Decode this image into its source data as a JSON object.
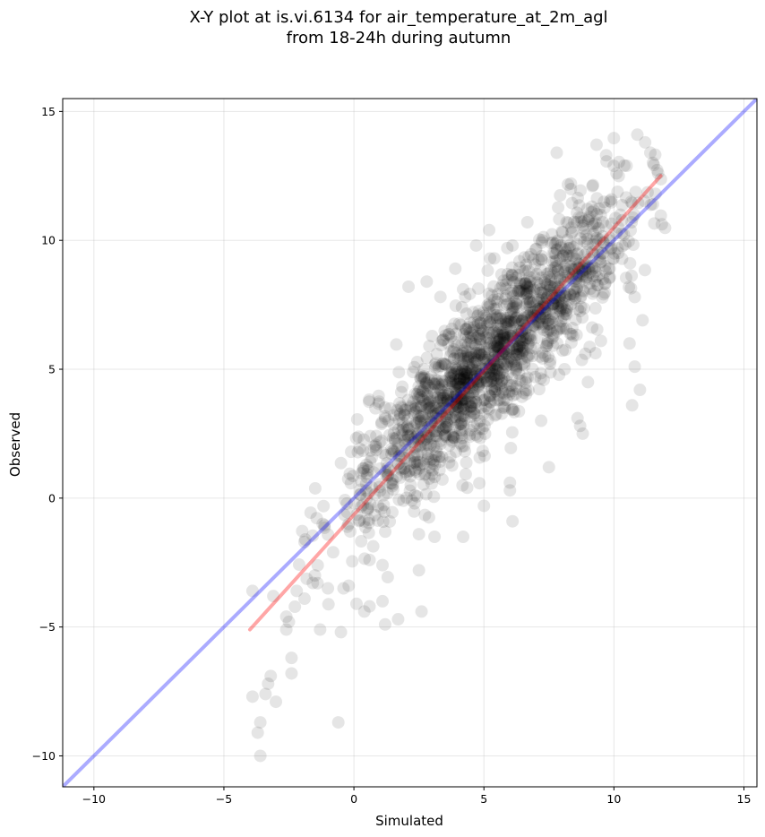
{
  "chart_data": {
    "type": "scatter",
    "title_line1": "X-Y plot at is.vi.6134 for air_temperature_at_2m_agl",
    "title_line2": "from 18-24h during autumn",
    "xlabel": "Simulated",
    "ylabel": "Observed",
    "xlim": [
      -11.2,
      15.5
    ],
    "ylim": [
      -11.2,
      15.5
    ],
    "xticks": [
      -10,
      -5,
      0,
      5,
      10,
      15
    ],
    "yticks": [
      -10,
      -5,
      0,
      5,
      10,
      15
    ],
    "xtick_labels": [
      "−10",
      "−5",
      "0",
      "5",
      "10",
      "15"
    ],
    "ytick_labels": [
      "−10",
      "−5",
      "0",
      "5",
      "10",
      "15"
    ],
    "grid": true,
    "point_color": "#000000",
    "point_alpha": 0.1,
    "series": [
      {
        "type": "scatter",
        "cluster": {
          "count": 1700,
          "slope": 1.0,
          "intercept": 0.2,
          "x_center": 5.3,
          "x_sd": 2.6,
          "x_min": -3.0,
          "x_max": 12.0,
          "y_sd": 1.35
        },
        "points": [
          [
            -3.9,
            -7.7
          ],
          [
            -3.7,
            -9.1
          ],
          [
            -3.6,
            -8.7
          ],
          [
            -3.6,
            -10.0
          ],
          [
            -3.4,
            -7.6
          ],
          [
            -3.3,
            -7.2
          ],
          [
            -3.2,
            -6.9
          ],
          [
            -3.0,
            -7.9
          ],
          [
            -3.9,
            -3.6
          ],
          [
            -3.1,
            -3.8
          ],
          [
            -2.6,
            -4.6
          ],
          [
            -2.6,
            -5.1
          ],
          [
            -2.5,
            -4.8
          ],
          [
            -2.4,
            -6.8
          ],
          [
            -2.4,
            -6.2
          ],
          [
            -2.2,
            -3.6
          ],
          [
            -1.9,
            -3.9
          ],
          [
            -1.9,
            -1.7
          ],
          [
            -1.5,
            -3.0
          ],
          [
            -1.4,
            -3.3
          ],
          [
            -1.3,
            -5.1
          ],
          [
            -1.0,
            -3.5
          ],
          [
            -0.6,
            -8.7
          ],
          [
            -0.5,
            -5.2
          ],
          [
            -0.4,
            -3.5
          ],
          [
            -0.2,
            -3.4
          ],
          [
            0.1,
            -4.1
          ],
          [
            0.4,
            -4.4
          ],
          [
            0.6,
            -4.2
          ],
          [
            1.1,
            -4.0
          ],
          [
            1.2,
            -4.9
          ],
          [
            1.7,
            -4.7
          ],
          [
            2.6,
            -4.4
          ],
          [
            2.5,
            -2.8
          ],
          [
            0.6,
            -2.4
          ],
          [
            -1.2,
            -1.0
          ],
          [
            -0.8,
            -2.1
          ],
          [
            1.1,
            -2.6
          ],
          [
            2.1,
            8.2
          ],
          [
            2.8,
            8.4
          ],
          [
            3.9,
            8.9
          ],
          [
            4.2,
            8.1
          ],
          [
            5.2,
            10.4
          ],
          [
            5.9,
            9.7
          ],
          [
            6.1,
            9.8
          ],
          [
            4.7,
            9.8
          ],
          [
            5.4,
            9.3
          ],
          [
            7.8,
            13.4
          ],
          [
            9.7,
            13.3
          ],
          [
            10.1,
            12.6
          ],
          [
            10.9,
            14.1
          ],
          [
            11.2,
            13.8
          ],
          [
            11.4,
            13.4
          ],
          [
            10.4,
            12.9
          ],
          [
            11.7,
            12.6
          ],
          [
            11.6,
            11.8
          ],
          [
            11.5,
            11.4
          ],
          [
            10.8,
            7.8
          ],
          [
            11.1,
            6.9
          ],
          [
            10.6,
            6.0
          ],
          [
            10.8,
            5.1
          ],
          [
            10.7,
            3.6
          ],
          [
            11.0,
            4.2
          ],
          [
            9.0,
            4.5
          ],
          [
            8.6,
            3.1
          ],
          [
            8.7,
            2.8
          ],
          [
            8.8,
            2.5
          ],
          [
            8.9,
            5.6
          ],
          [
            7.2,
            3.0
          ],
          [
            7.5,
            1.2
          ],
          [
            6.1,
            -0.9
          ],
          [
            6.0,
            0.6
          ],
          [
            6.0,
            0.3
          ],
          [
            5.0,
            -0.3
          ],
          [
            4.2,
            -1.5
          ],
          [
            3.1,
            -1.5
          ],
          [
            2.5,
            -1.4
          ],
          [
            8.1,
            5.0
          ],
          [
            8.4,
            6.6
          ],
          [
            9.5,
            6.1
          ]
        ]
      },
      {
        "type": "line",
        "name": "",
        "color": "#0000ff",
        "alpha": 0.33,
        "x": [
          -11.2,
          15.5
        ],
        "y": [
          -11.2,
          15.5
        ]
      },
      {
        "type": "line",
        "name": "",
        "color": "#ff0000",
        "alpha": 0.35,
        "x": [
          -4.0,
          11.8
        ],
        "y": [
          -5.1,
          12.5
        ]
      }
    ]
  }
}
